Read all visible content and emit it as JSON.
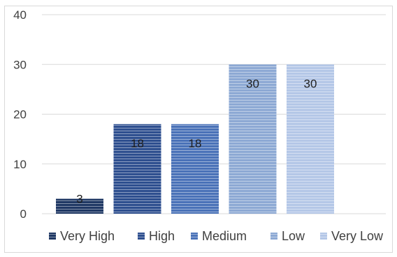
{
  "chart_data": {
    "type": "bar",
    "categories": [
      "Very High",
      "High",
      "Medium",
      "Low",
      "Very Low"
    ],
    "values": [
      3,
      18,
      18,
      30,
      30
    ],
    "ylim": [
      0,
      40
    ],
    "yticks": [
      0,
      10,
      20,
      30,
      40
    ],
    "grid": true,
    "legend_position": "bottom",
    "colors": [
      "#1f3864",
      "#2e4f8f",
      "#4a72b8",
      "#8da9d4",
      "#b4c7e7"
    ],
    "stripe_color": "#ffffff",
    "grid_color": "#d9d9d9",
    "title": "",
    "xlabel": "",
    "ylabel": ""
  }
}
